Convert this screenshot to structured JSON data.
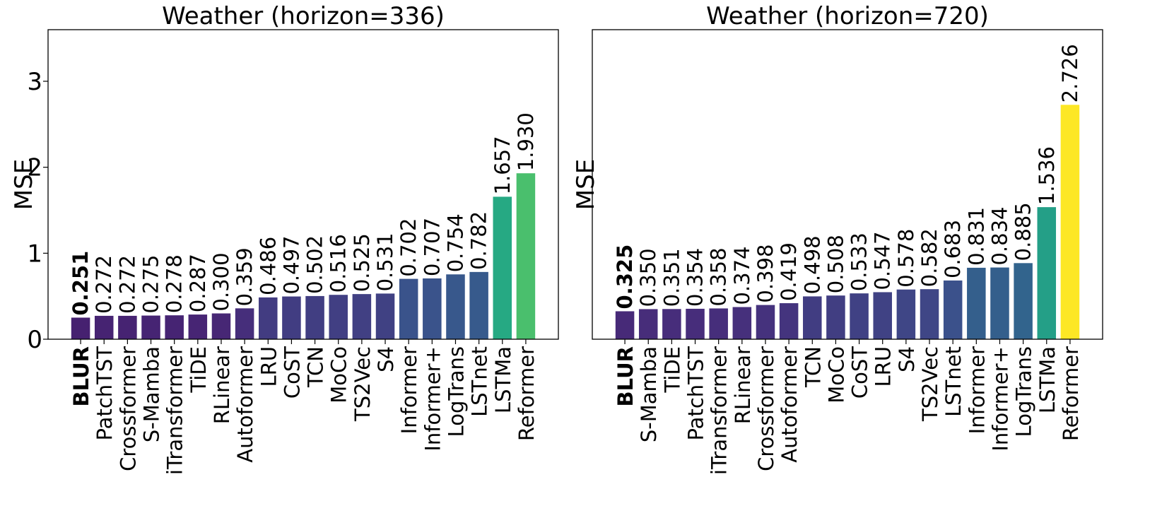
{
  "chart_data": [
    {
      "type": "bar",
      "title": "Weather (horizon=336)",
      "xlabel": "",
      "ylabel": "MSE",
      "ylim": [
        0,
        3.6
      ],
      "yticks": [
        "0",
        "1",
        "2",
        "3"
      ],
      "grid": false,
      "highlight": "BLUR",
      "categories": [
        "BLUR",
        "PatchTST",
        "Crossformer",
        "S-Mamba",
        "iTransformer",
        "TiDE",
        "RLinear",
        "Autoformer",
        "LRU",
        "CoST",
        "TCN",
        "MoCo",
        "TS2Vec",
        "S4",
        "Informer",
        "Informer+",
        "LogTrans",
        "LSTnet",
        "LSTMa",
        "Reformer"
      ],
      "values": [
        0.251,
        0.272,
        0.272,
        0.275,
        0.278,
        0.287,
        0.3,
        0.359,
        0.486,
        0.497,
        0.502,
        0.516,
        0.525,
        0.531,
        0.702,
        0.707,
        0.754,
        0.782,
        1.657,
        1.93
      ],
      "value_labels": [
        "0.251",
        "0.272",
        "0.272",
        "0.275",
        "0.278",
        "0.287",
        "0.300",
        "0.359",
        "0.486",
        "0.497",
        "0.502",
        "0.516",
        "0.525",
        "0.531",
        "0.702",
        "0.707",
        "0.754",
        "0.782",
        "1.657",
        "1.930"
      ]
    },
    {
      "type": "bar",
      "title": "Weather (horizon=720)",
      "xlabel": "",
      "ylabel": "MSE",
      "ylim": [
        0,
        3.6
      ],
      "yticks": [],
      "grid": false,
      "highlight": "BLUR",
      "categories": [
        "BLUR",
        "S-Mamba",
        "TiDE",
        "PatchTST",
        "iTransformer",
        "RLinear",
        "Crossformer",
        "Autoformer",
        "TCN",
        "MoCo",
        "CoST",
        "LRU",
        "S4",
        "TS2Vec",
        "LSTnet",
        "Informer",
        "Informer+",
        "LogTrans",
        "LSTMa",
        "Reformer"
      ],
      "values": [
        0.325,
        0.35,
        0.351,
        0.354,
        0.358,
        0.374,
        0.398,
        0.419,
        0.498,
        0.508,
        0.533,
        0.547,
        0.578,
        0.582,
        0.683,
        0.831,
        0.834,
        0.885,
        1.536,
        2.726
      ],
      "value_labels": [
        "0.325",
        "0.350",
        "0.351",
        "0.354",
        "0.358",
        "0.374",
        "0.398",
        "0.419",
        "0.498",
        "0.508",
        "0.533",
        "0.547",
        "0.578",
        "0.582",
        "0.683",
        "0.831",
        "0.834",
        "0.885",
        "1.536",
        "2.726"
      ]
    }
  ],
  "colormap": "viridis",
  "colormap_range": [
    0,
    2.726
  ]
}
